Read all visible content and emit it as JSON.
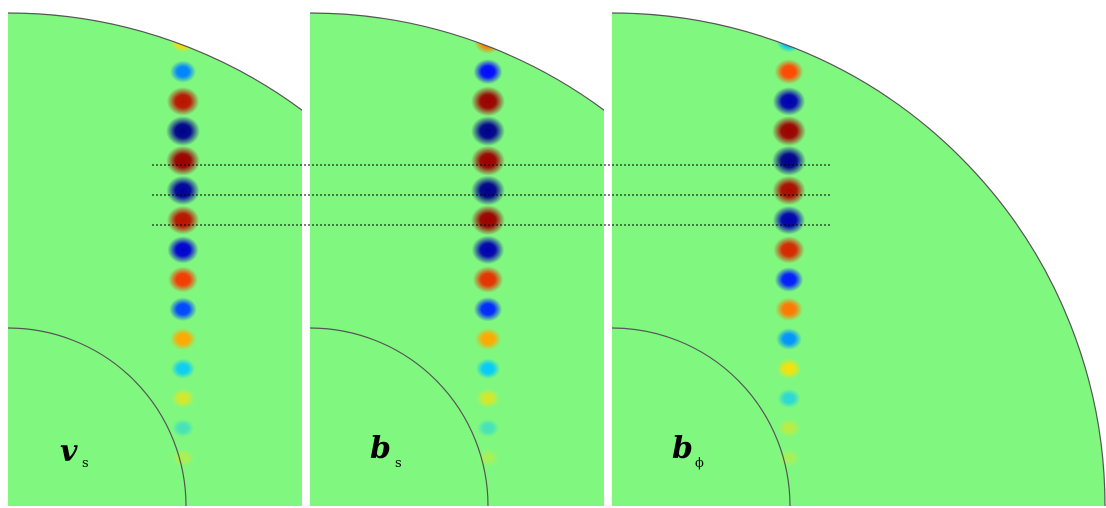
{
  "colors": {
    "background": "#80f880",
    "boundary": "#555555",
    "guide_line": "#000000",
    "page": "#ffffff"
  },
  "colormap": [
    "#00008c",
    "#0000ff",
    "#00c8ff",
    "#80f880",
    "#ffe000",
    "#ff4000",
    "#9c0000"
  ],
  "panels": [
    {
      "id": "vs",
      "label": {
        "main": "v",
        "sub": "s"
      },
      "blob_amplitudes": [
        0.35,
        -0.45,
        0.9,
        -1.0,
        1.0,
        -0.95,
        0.9,
        -0.8,
        0.7,
        -0.55,
        0.45,
        -0.3,
        0.22,
        -0.15,
        0.12
      ]
    },
    {
      "id": "bs",
      "label": {
        "main": "b",
        "sub": "s"
      },
      "blob_amplitudes": [
        0.55,
        -0.65,
        1.0,
        -1.0,
        1.0,
        -1.0,
        1.0,
        -0.9,
        0.75,
        -0.6,
        0.45,
        -0.32,
        0.22,
        -0.15,
        0.1
      ]
    },
    {
      "id": "bphi",
      "label": {
        "main": "b",
        "sub": "ϕ"
      },
      "blob_amplitudes": [
        -0.35,
        0.65,
        -0.9,
        1.0,
        -1.0,
        0.95,
        -0.9,
        0.8,
        -0.62,
        0.55,
        -0.42,
        0.3,
        -0.22,
        0.15,
        0.1
      ]
    }
  ]
}
